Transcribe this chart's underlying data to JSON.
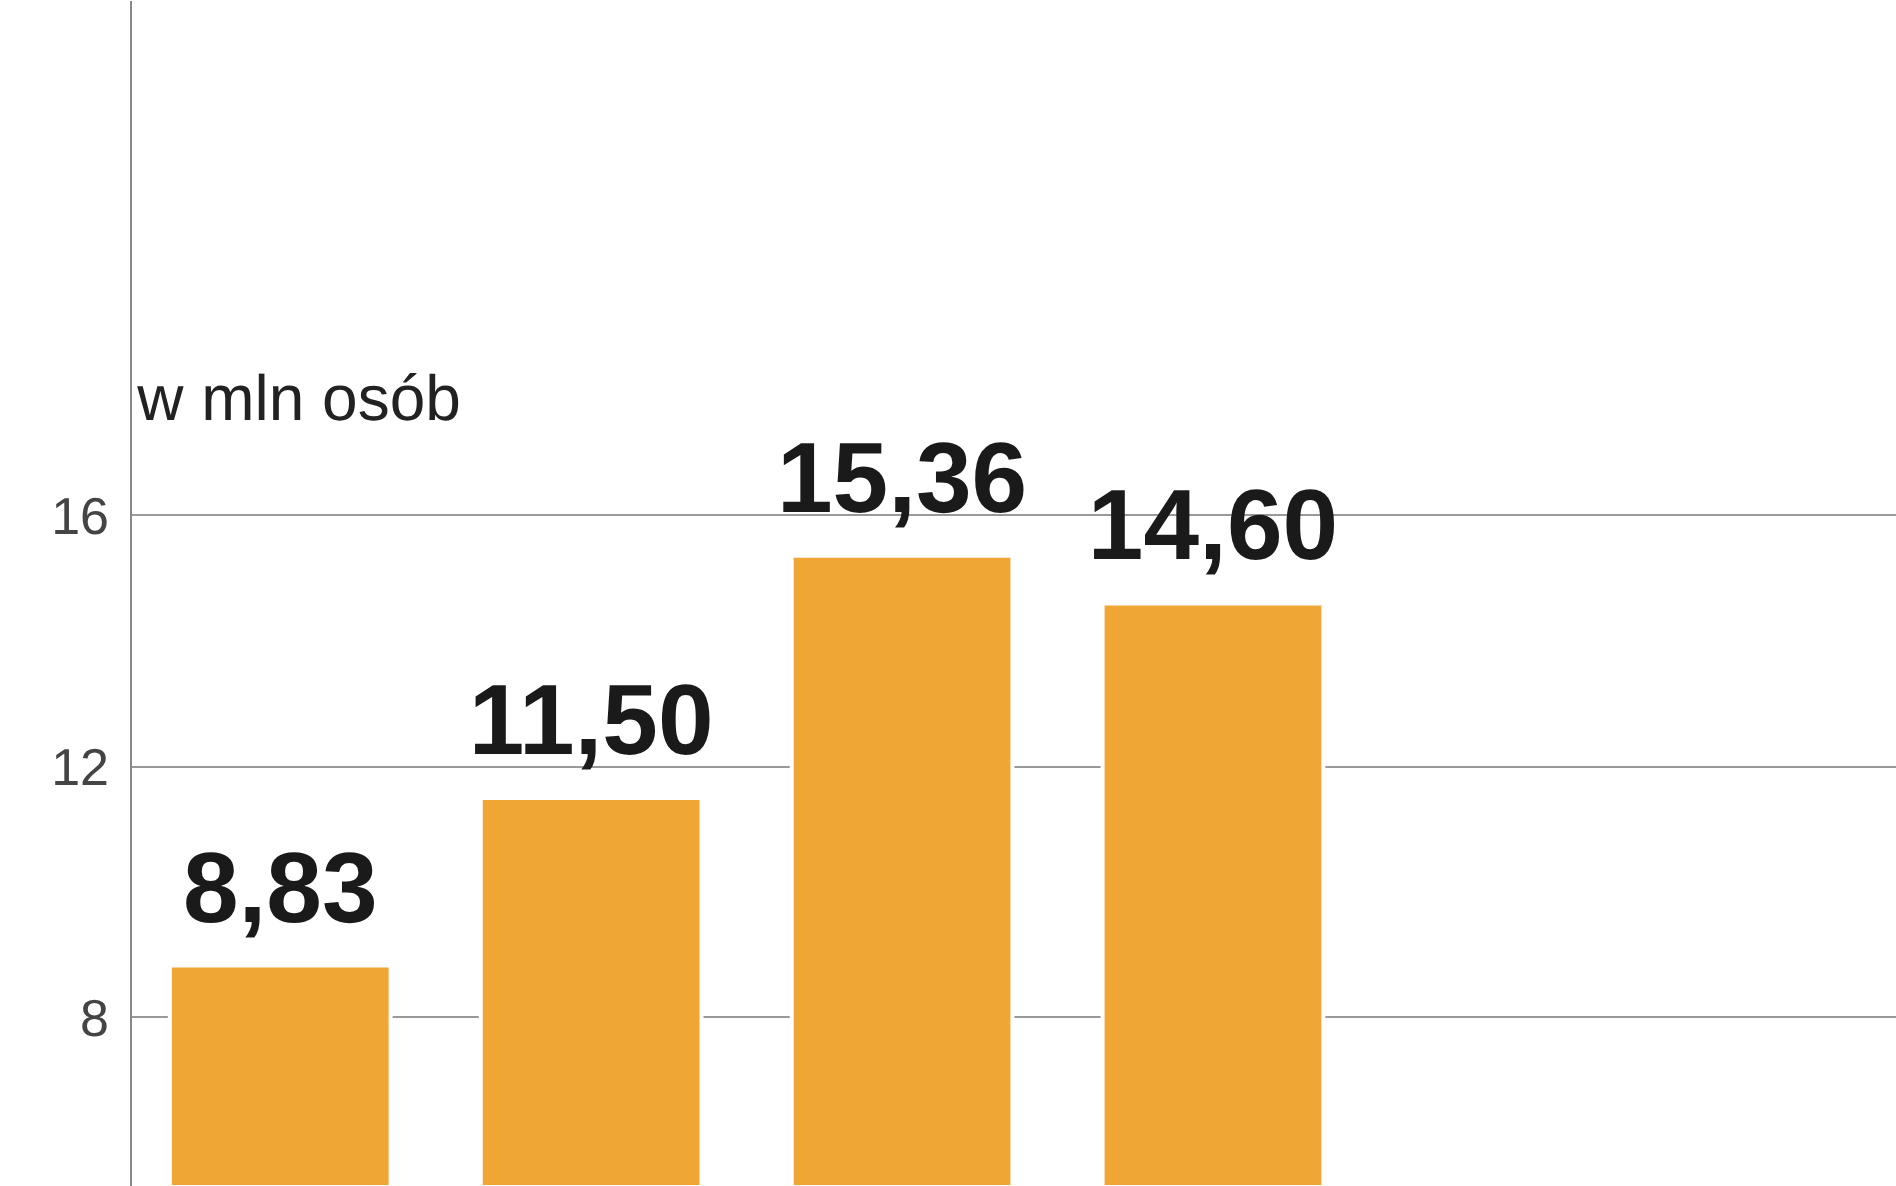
{
  "chart_data": {
    "type": "bar",
    "ylabel": "w mln osób",
    "categories": [
      null,
      null,
      null,
      null
    ],
    "values": [
      8.83,
      11.5,
      15.36,
      14.6
    ],
    "value_labels": [
      "8,83",
      "11,50",
      "15,36",
      "14,60"
    ],
    "color": "#efa634",
    "ylim": [
      5.3,
      24.2
    ],
    "yticks": [
      8,
      12,
      16
    ],
    "grid": "y"
  }
}
